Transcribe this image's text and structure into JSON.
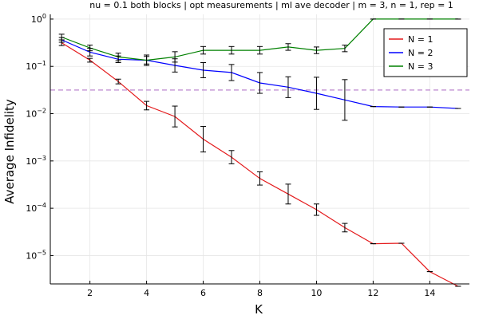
{
  "chart_data": {
    "type": "line",
    "title": "nu = 0.1 both blocks | opt measurements | ml ave decoder | m = 3, n = 1, rep = 1",
    "xlabel": "K",
    "ylabel": "Average Infidelity",
    "x_scale": "linear",
    "y_scale": "log",
    "xlim": [
      0.6,
      15.4
    ],
    "ylim_log10": [
      -5.6,
      0.1
    ],
    "x_ticks": [
      2,
      4,
      6,
      8,
      10,
      12,
      14
    ],
    "x_tick_labels": [
      "2",
      "4",
      "6",
      "8",
      "10",
      "12",
      "14"
    ],
    "y_ticks_log10": [
      -5,
      -4,
      -3,
      -2,
      -1,
      0
    ],
    "y_tick_labels": [
      {
        "base": "10",
        "exp": "−5"
      },
      {
        "base": "10",
        "exp": "−4"
      },
      {
        "base": "10",
        "exp": "−3"
      },
      {
        "base": "10",
        "exp": "−2"
      },
      {
        "base": "10",
        "exp": "−1"
      },
      {
        "base": "10",
        "exp": "0"
      }
    ],
    "grid": true,
    "legend_position": "top-right",
    "threshold_line": {
      "y_log10": -1.5,
      "color": "#c79ad6",
      "style": "dashed"
    },
    "x": [
      1,
      2,
      3,
      4,
      5,
      6,
      7,
      8,
      9,
      10,
      11,
      12,
      13,
      14,
      15
    ],
    "series": [
      {
        "name": "N = 1",
        "color": "#e41a1c",
        "y_log10": [
          -0.5,
          -0.87,
          -1.32,
          -1.83,
          -2.06,
          -2.54,
          -2.92,
          -3.37,
          -3.7,
          -4.03,
          -4.41,
          -4.75,
          -4.74,
          -5.34,
          -5.65
        ],
        "err_log10": [
          0.06,
          0.04,
          0.05,
          0.09,
          0.22,
          0.27,
          0.14,
          0.14,
          0.21,
          0.12,
          0.09,
          0.0,
          0.0,
          0.0,
          0.0
        ]
      },
      {
        "name": "N = 2",
        "color": "#0000ff",
        "y_log10": [
          -0.44,
          -0.7,
          -0.85,
          -0.87,
          -0.98,
          -1.08,
          -1.13,
          -1.35,
          -1.44,
          -1.57,
          -1.71,
          -1.85,
          -1.86,
          -1.86,
          -1.89
        ],
        "err_log10": [
          0.05,
          0.08,
          0.07,
          0.11,
          0.14,
          0.16,
          0.17,
          0.22,
          0.22,
          0.34,
          0.43,
          0.0,
          0.0,
          0.0,
          0.0
        ]
      },
      {
        "name": "N = 3",
        "color": "#008000",
        "y_log10": [
          -0.38,
          -0.61,
          -0.8,
          -0.87,
          -0.8,
          -0.66,
          -0.66,
          -0.66,
          -0.59,
          -0.66,
          -0.62,
          0.0,
          0.0,
          0.0,
          0.0
        ],
        "err_log10": [
          0.06,
          0.06,
          0.08,
          0.08,
          0.11,
          0.08,
          0.08,
          0.08,
          0.07,
          0.07,
          0.07,
          0.0,
          0.0,
          0.0,
          0.0
        ]
      }
    ]
  }
}
